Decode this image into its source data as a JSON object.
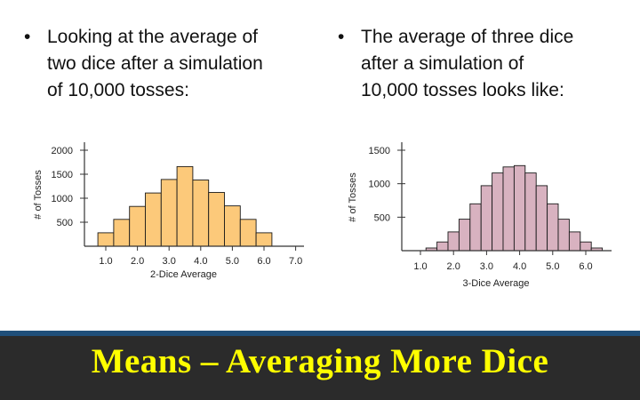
{
  "bullets": {
    "left": {
      "symbol": "•",
      "text": "Looking at the average of\ntwo dice after a simulation\nof 10,000 tosses:"
    },
    "right": {
      "symbol": "•",
      "text": "The average of three dice\nafter a simulation of\n10,000 tosses looks like:"
    }
  },
  "footer": {
    "title": "Means – Averaging More Dice",
    "title_color": "#ffff00",
    "bg_color": "#2b2b2b"
  },
  "chart_data": [
    {
      "type": "bar",
      "xlabel": "2-Dice Average",
      "ylabel": "# of Tosses",
      "bar_color": "#fcc97a",
      "x_ticks": [
        "1.0",
        "2.0",
        "3.0",
        "4.0",
        "5.0",
        "6.0",
        "7.0"
      ],
      "y_ticks": [
        "500",
        "1000",
        "1500",
        "2000"
      ],
      "xlim": [
        0.5,
        7.3
      ],
      "ylim": [
        0,
        2300
      ],
      "bar_width": 0.5,
      "bars": [
        {
          "x": 1.0,
          "value": 280
        },
        {
          "x": 1.5,
          "value": 560
        },
        {
          "x": 2.0,
          "value": 830
        },
        {
          "x": 2.5,
          "value": 1110
        },
        {
          "x": 3.0,
          "value": 1390
        },
        {
          "x": 3.5,
          "value": 1660
        },
        {
          "x": 4.0,
          "value": 1380
        },
        {
          "x": 4.5,
          "value": 1120
        },
        {
          "x": 5.0,
          "value": 840
        },
        {
          "x": 5.5,
          "value": 560
        },
        {
          "x": 6.0,
          "value": 280
        }
      ]
    },
    {
      "type": "bar",
      "xlabel": "3-Dice Average",
      "ylabel": "# of Tosses",
      "bar_color": "#d8b2c0",
      "x_ticks": [
        "1.0",
        "2.0",
        "3.0",
        "4.0",
        "5.0",
        "6.0"
      ],
      "y_ticks": [
        "500",
        "1000",
        "1500"
      ],
      "xlim": [
        0.5,
        6.8
      ],
      "ylim": [
        0,
        1600
      ],
      "bar_width": 0.3333,
      "bars": [
        {
          "x": 1.333,
          "value": 40
        },
        {
          "x": 1.667,
          "value": 130
        },
        {
          "x": 2.0,
          "value": 280
        },
        {
          "x": 2.333,
          "value": 470
        },
        {
          "x": 2.667,
          "value": 700
        },
        {
          "x": 3.0,
          "value": 970
        },
        {
          "x": 3.333,
          "value": 1160
        },
        {
          "x": 3.667,
          "value": 1250
        },
        {
          "x": 4.0,
          "value": 1270
        },
        {
          "x": 4.333,
          "value": 1160
        },
        {
          "x": 4.667,
          "value": 970
        },
        {
          "x": 5.0,
          "value": 700
        },
        {
          "x": 5.333,
          "value": 470
        },
        {
          "x": 5.667,
          "value": 280
        },
        {
          "x": 6.0,
          "value": 130
        },
        {
          "x": 6.333,
          "value": 40
        }
      ]
    }
  ]
}
